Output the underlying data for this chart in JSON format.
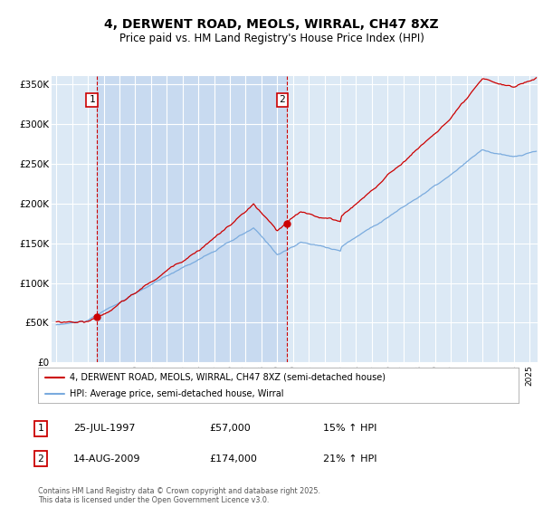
{
  "title": "4, DERWENT ROAD, MEOLS, WIRRAL, CH47 8XZ",
  "subtitle": "Price paid vs. HM Land Registry's House Price Index (HPI)",
  "ylabel_ticks": [
    "£0",
    "£50K",
    "£100K",
    "£150K",
    "£200K",
    "£250K",
    "£300K",
    "£350K"
  ],
  "ytick_values": [
    0,
    50000,
    100000,
    150000,
    200000,
    250000,
    300000,
    350000
  ],
  "ylim": [
    0,
    360000
  ],
  "xlim_start": 1994.7,
  "xlim_end": 2025.5,
  "legend_label_red": "4, DERWENT ROAD, MEOLS, WIRRAL, CH47 8XZ (semi-detached house)",
  "legend_label_blue": "HPI: Average price, semi-detached house, Wirral",
  "sale1_x": 1997.56,
  "sale1_y": 57000,
  "sale2_x": 2009.62,
  "sale2_y": 174000,
  "annotation1_date": "25-JUL-1997",
  "annotation1_price": "£57,000",
  "annotation1_hpi": "15% ↑ HPI",
  "annotation2_date": "14-AUG-2009",
  "annotation2_price": "£174,000",
  "annotation2_hpi": "21% ↑ HPI",
  "footer": "Contains HM Land Registry data © Crown copyright and database right 2025.\nThis data is licensed under the Open Government Licence v3.0.",
  "red_color": "#cc0000",
  "blue_color": "#7aabde",
  "bg_color": "#dce9f5",
  "bg_highlight": "#c8daf0",
  "grid_color": "#ffffff",
  "vline_color": "#cc0000"
}
